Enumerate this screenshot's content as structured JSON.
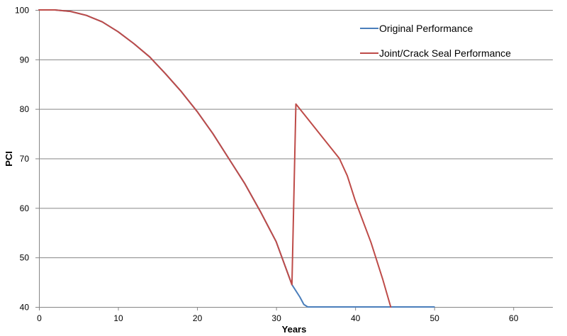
{
  "chart_data": {
    "type": "line",
    "xlabel": "Years",
    "ylabel": "PCI",
    "xlim": [
      0,
      65
    ],
    "ylim": [
      40,
      100
    ],
    "xticks": [
      0,
      10,
      20,
      30,
      40,
      50,
      60
    ],
    "yticks": [
      40,
      50,
      60,
      70,
      80,
      90,
      100
    ],
    "grid": "horizontal",
    "legend_position": "top-right",
    "series": [
      {
        "name": "Original Performance",
        "color": "#4a7ebb",
        "x": [
          0,
          2,
          4,
          6,
          8,
          10,
          12,
          14,
          16,
          18,
          20,
          22,
          24,
          26,
          28,
          30,
          32,
          33,
          33.5,
          34,
          40,
          50
        ],
        "y": [
          100,
          100,
          99.7,
          98.9,
          97.6,
          95.6,
          93.2,
          90.5,
          87.1,
          83.5,
          79.5,
          75.0,
          70.0,
          65.0,
          59.3,
          53.2,
          44.5,
          42.0,
          40.5,
          40,
          40,
          40
        ]
      },
      {
        "name": "Joint/Crack Seal Performance",
        "color": "#be4b48",
        "x": [
          0,
          2,
          4,
          6,
          8,
          10,
          12,
          14,
          16,
          18,
          20,
          22,
          24,
          26,
          28,
          30,
          32,
          32.5,
          34,
          36,
          38,
          39,
          40,
          42,
          43.5,
          44.5
        ],
        "y": [
          100,
          100,
          99.7,
          98.9,
          97.6,
          95.6,
          93.2,
          90.5,
          87.1,
          83.5,
          79.5,
          75.0,
          70.0,
          65.0,
          59.3,
          53.2,
          44.5,
          81.0,
          78.0,
          74.0,
          70.0,
          66.5,
          61.5,
          53.0,
          45.5,
          40
        ]
      }
    ]
  }
}
